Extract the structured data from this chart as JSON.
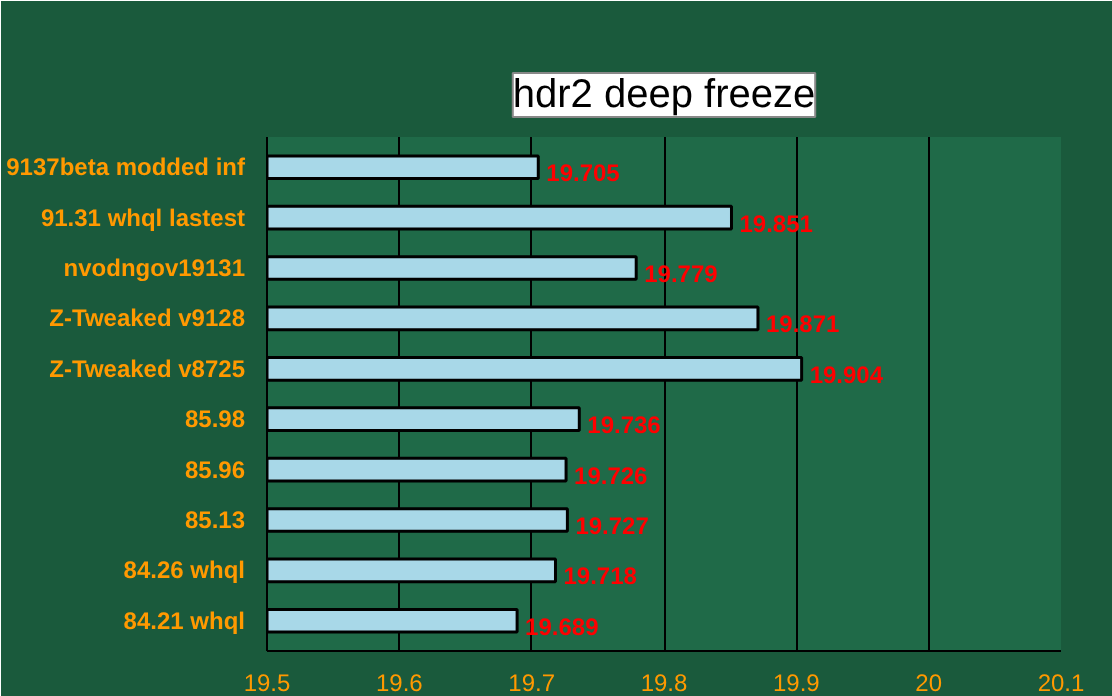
{
  "chart_data": {
    "type": "bar",
    "orientation": "horizontal",
    "title": "hdr2 deep freeze",
    "categories": [
      "9137beta modded inf",
      "91.31 whql lastest",
      "nvodngov19131",
      "Z-Tweaked v9128",
      "Z-Tweaked v8725",
      "85.98",
      "85.96",
      "85.13",
      "84.26 whql",
      "84.21 whql"
    ],
    "values": [
      19.705,
      19.851,
      19.779,
      19.871,
      19.904,
      19.736,
      19.726,
      19.727,
      19.718,
      19.689
    ],
    "color": "#a8d8e8",
    "data_labels": true,
    "xlim": [
      19.5,
      20.1
    ],
    "xticks": [
      19.5,
      19.6,
      19.7,
      19.8,
      19.9,
      20,
      20.1
    ],
    "grid": "x"
  }
}
